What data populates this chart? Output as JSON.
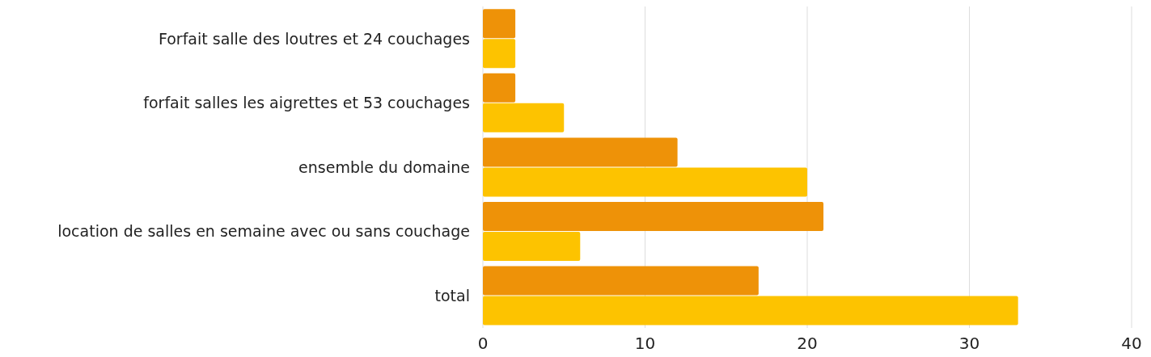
{
  "chart_data": {
    "type": "bar",
    "orientation": "horizontal",
    "categories": [
      "Forfait salle des loutres et 24 couchages",
      "forfait salles les aigrettes et 53 couchages",
      "ensemble du domaine",
      "location de salles en semaine avec ou sans couchage",
      "total"
    ],
    "series": [
      {
        "color": "#ee9208",
        "values": [
          2,
          2,
          12,
          21,
          17
        ]
      },
      {
        "color": "#fdc300",
        "values": [
          2,
          5,
          20,
          6,
          33
        ]
      }
    ],
    "xlim": [
      0,
      40
    ],
    "xticks": [
      0,
      10,
      20,
      30,
      40
    ],
    "grid": "x",
    "legend": false
  }
}
